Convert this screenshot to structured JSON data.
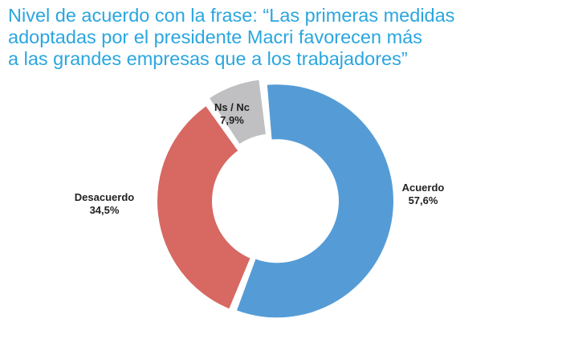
{
  "chart_data": {
    "type": "pie",
    "donut": true,
    "title_lines": [
      "Nivel de acuerdo con la frase: “Las primeras medidas",
      "adoptadas por el presidente Macri favorecen más",
      "a las grandes empresas que a los trabajadores”"
    ],
    "slices": [
      {
        "label": "Acuerdo",
        "value": 57.6,
        "value_label": "57,6%",
        "color": "#559cd6"
      },
      {
        "label": "Desacuerdo",
        "value": 34.5,
        "value_label": "34,5%",
        "color": "#d76862"
      },
      {
        "label": "Ns / Nc",
        "value": 7.9,
        "value_label": "7,9%",
        "color": "#c0c0c2"
      }
    ]
  }
}
